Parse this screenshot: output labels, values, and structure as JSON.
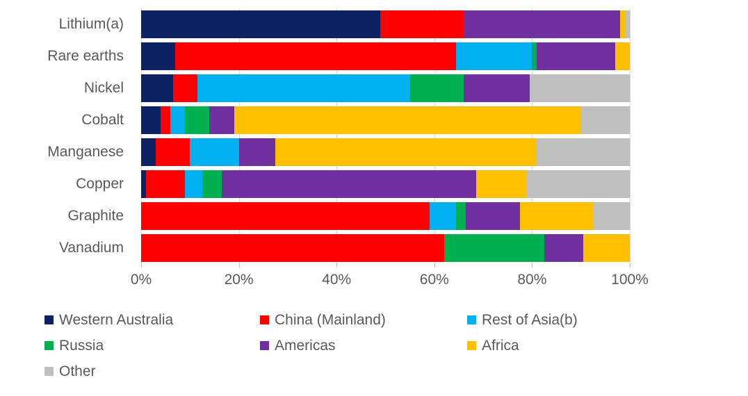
{
  "chart_data": {
    "type": "bar",
    "variant": "horizontal-stacked-100",
    "title": "",
    "categories": [
      "Lithium(a)",
      "Rare earths",
      "Nickel",
      "Cobalt",
      "Manganese",
      "Copper",
      "Graphite",
      "Vanadium"
    ],
    "series": [
      {
        "name": "Western Australia",
        "color": "#0d2262",
        "values": [
          49,
          7,
          6.5,
          4,
          3,
          1,
          0,
          0
        ]
      },
      {
        "name": "China (Mainland)",
        "color": "#ff0000",
        "values": [
          17,
          57.5,
          5,
          2,
          7,
          8,
          59,
          62
        ]
      },
      {
        "name": "Rest of Asia(b)",
        "color": "#00b0f0",
        "values": [
          0,
          15.5,
          43.5,
          3,
          10,
          3.5,
          5.5,
          0
        ]
      },
      {
        "name": "Russia",
        "color": "#00b050",
        "values": [
          0,
          1,
          11,
          5,
          0,
          4,
          2,
          20.5
        ]
      },
      {
        "name": "Americas",
        "color": "#7030a0",
        "values": [
          32,
          16,
          13.5,
          5,
          7.5,
          52,
          11,
          8
        ]
      },
      {
        "name": "Africa",
        "color": "#ffc000",
        "values": [
          1.2,
          3,
          0,
          71,
          53.5,
          10.5,
          15,
          9.5
        ]
      },
      {
        "name": "Other",
        "color": "#bfbfbf",
        "values": [
          0.8,
          0,
          20.5,
          10,
          19,
          21,
          7.5,
          0
        ]
      }
    ],
    "x_axis": {
      "min": 0,
      "max": 100,
      "tick_step": 20,
      "tick_labels": [
        "0%",
        "20%",
        "40%",
        "60%",
        "80%",
        "100%"
      ]
    },
    "grid": true,
    "gridline_color": "#d9d9d9",
    "text_color": "#595959",
    "legend_position": "bottom",
    "legend_labels": [
      "Western Australia",
      "China (Mainland)",
      "Rest of Asia(b)",
      "Russia",
      "Americas",
      "Africa",
      "Other"
    ]
  }
}
